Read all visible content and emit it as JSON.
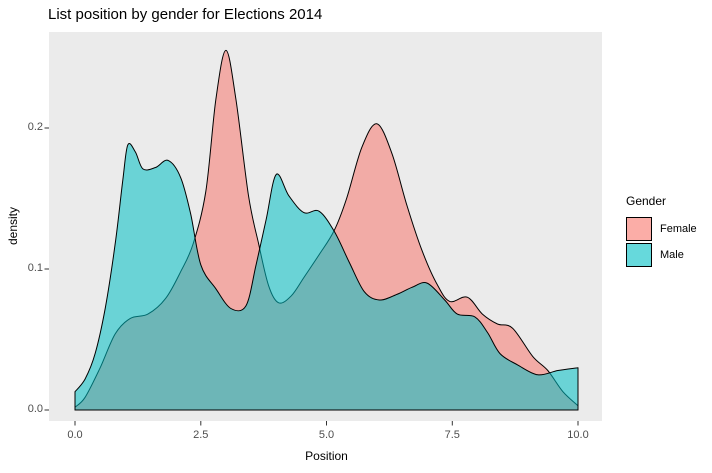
{
  "chart_data": {
    "type": "area",
    "title": "List position by gender for Elections 2014",
    "xlabel": "Position",
    "ylabel": "density",
    "xlim": [
      0,
      10
    ],
    "ylim": [
      0,
      0.26
    ],
    "grid": false,
    "panel_bg": "#EBEBEB",
    "tick_text_color": "#4D4D4D",
    "tick_mark_color": "#333333",
    "outline_color": "#000000",
    "fill_opacity": 0.55,
    "x_ticks": [
      {
        "value": 0.0,
        "label": "0.0"
      },
      {
        "value": 2.5,
        "label": "2.5"
      },
      {
        "value": 5.0,
        "label": "5.0"
      },
      {
        "value": 7.5,
        "label": "7.5"
      },
      {
        "value": 10.0,
        "label": "10.0"
      }
    ],
    "y_ticks": [
      {
        "value": 0.0,
        "label": "0.0"
      },
      {
        "value": 0.1,
        "label": "0.1"
      },
      {
        "value": 0.2,
        "label": "0.2"
      }
    ],
    "legend": {
      "title": "Gender",
      "position": "right",
      "entries": [
        {
          "label": "Female",
          "color": "#F8766D"
        },
        {
          "label": "Male",
          "color": "#00BFC4"
        }
      ]
    },
    "series": [
      {
        "name": "Female",
        "color": "#F8766D",
        "points": [
          [
            0.0,
            0.002
          ],
          [
            0.2,
            0.009
          ],
          [
            0.5,
            0.03
          ],
          [
            0.8,
            0.054
          ],
          [
            1.1,
            0.065
          ],
          [
            1.45,
            0.068
          ],
          [
            1.8,
            0.079
          ],
          [
            2.1,
            0.098
          ],
          [
            2.35,
            0.118
          ],
          [
            2.6,
            0.155
          ],
          [
            2.8,
            0.22
          ],
          [
            3.0,
            0.255
          ],
          [
            3.2,
            0.22
          ],
          [
            3.45,
            0.152
          ],
          [
            3.65,
            0.118
          ],
          [
            3.85,
            0.088
          ],
          [
            4.05,
            0.076
          ],
          [
            4.3,
            0.081
          ],
          [
            4.55,
            0.094
          ],
          [
            4.85,
            0.11
          ],
          [
            5.15,
            0.127
          ],
          [
            5.4,
            0.15
          ],
          [
            5.7,
            0.186
          ],
          [
            6.0,
            0.203
          ],
          [
            6.3,
            0.182
          ],
          [
            6.6,
            0.145
          ],
          [
            6.9,
            0.113
          ],
          [
            7.2,
            0.089
          ],
          [
            7.45,
            0.077
          ],
          [
            7.8,
            0.08
          ],
          [
            8.1,
            0.068
          ],
          [
            8.4,
            0.061
          ],
          [
            8.7,
            0.058
          ],
          [
            9.1,
            0.038
          ],
          [
            9.4,
            0.028
          ],
          [
            9.7,
            0.013
          ],
          [
            10.0,
            0.003
          ]
        ]
      },
      {
        "name": "Male",
        "color": "#00BFC4",
        "points": [
          [
            0.0,
            0.013
          ],
          [
            0.2,
            0.022
          ],
          [
            0.4,
            0.04
          ],
          [
            0.6,
            0.072
          ],
          [
            0.8,
            0.118
          ],
          [
            0.95,
            0.163
          ],
          [
            1.05,
            0.188
          ],
          [
            1.2,
            0.183
          ],
          [
            1.35,
            0.171
          ],
          [
            1.6,
            0.172
          ],
          [
            1.85,
            0.177
          ],
          [
            2.1,
            0.165
          ],
          [
            2.3,
            0.139
          ],
          [
            2.5,
            0.103
          ],
          [
            2.8,
            0.086
          ],
          [
            3.1,
            0.072
          ],
          [
            3.4,
            0.074
          ],
          [
            3.6,
            0.103
          ],
          [
            3.8,
            0.135
          ],
          [
            4.0,
            0.167
          ],
          [
            4.25,
            0.152
          ],
          [
            4.55,
            0.14
          ],
          [
            4.85,
            0.141
          ],
          [
            5.15,
            0.127
          ],
          [
            5.45,
            0.105
          ],
          [
            5.75,
            0.084
          ],
          [
            6.05,
            0.078
          ],
          [
            6.4,
            0.082
          ],
          [
            6.7,
            0.087
          ],
          [
            7.0,
            0.09
          ],
          [
            7.35,
            0.078
          ],
          [
            7.6,
            0.068
          ],
          [
            7.95,
            0.066
          ],
          [
            8.2,
            0.055
          ],
          [
            8.45,
            0.04
          ],
          [
            8.8,
            0.032
          ],
          [
            9.2,
            0.025
          ],
          [
            9.6,
            0.028
          ],
          [
            10.0,
            0.03
          ]
        ]
      }
    ]
  }
}
